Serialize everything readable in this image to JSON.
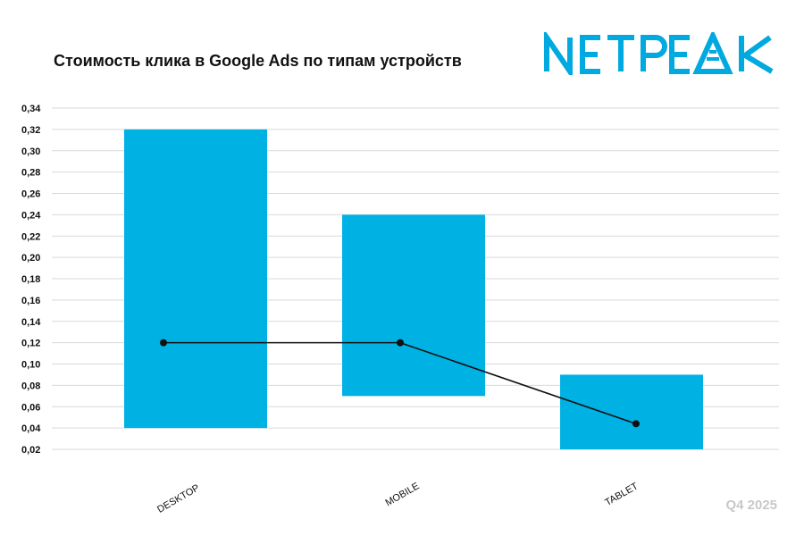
{
  "title": "Стоимость клика в Google Ads по типам устройств",
  "brand": {
    "name": "NETPEAK",
    "color": "#00a9df"
  },
  "period": "Q4 2025",
  "chart_data": {
    "type": "floating-bar-with-line",
    "title": "Стоимость клика в Google Ads по типам устройств",
    "categories": [
      "DESKTOP",
      "MOBILE",
      "TABLET"
    ],
    "series": [
      {
        "type": "range-bar",
        "low": [
          0.04,
          0.07,
          0.02
        ],
        "high": [
          0.32,
          0.24,
          0.09
        ],
        "color": "#00b1e4"
      },
      {
        "type": "line",
        "values": [
          0.12,
          0.12,
          0.044
        ],
        "color": "#111111"
      }
    ],
    "y_ticks": [
      "0,02",
      "0,04",
      "0,06",
      "0,08",
      "0,10",
      "0,12",
      "0,14",
      "0,16",
      "0,18",
      "0,20",
      "0,22",
      "0,24",
      "0,26",
      "0,28",
      "0,30",
      "0,32",
      "0,34"
    ],
    "ylim": [
      0.02,
      0.34
    ],
    "grid": true,
    "legend": "none"
  }
}
